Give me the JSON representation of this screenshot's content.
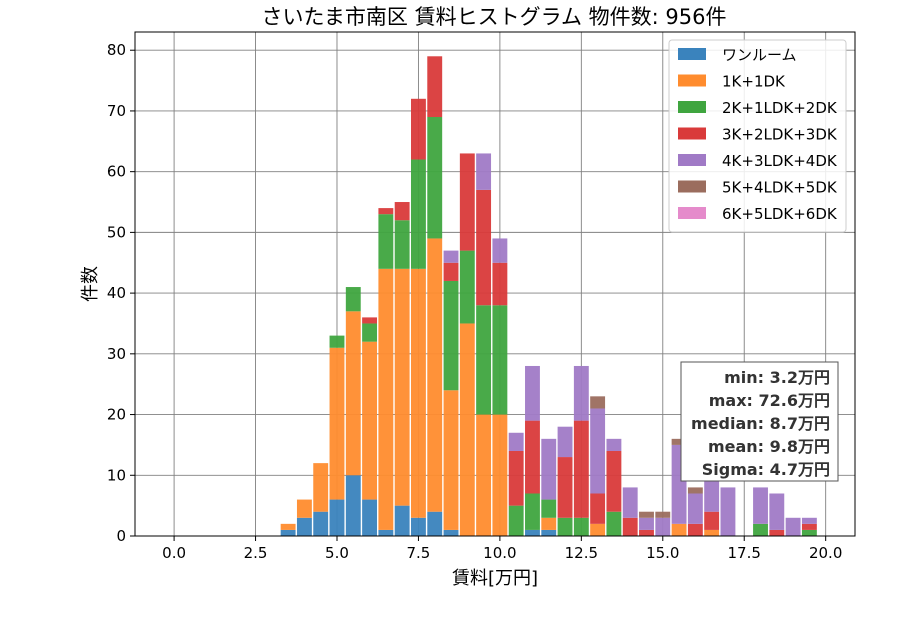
{
  "chart_data": {
    "type": "bar",
    "stacked": true,
    "title": "さいたま市南区 賃料ヒストグラム 物件数: 956件",
    "xlabel": "賃料[万円]",
    "ylabel": "件数",
    "xlim": [
      -1.2,
      20.9
    ],
    "ylim": [
      0,
      83
    ],
    "grid": true,
    "legend_position": "top-right",
    "bin_width": 0.5,
    "x_ticks": [
      "0.0",
      "2.5",
      "5.0",
      "7.5",
      "10.0",
      "12.5",
      "15.0",
      "17.5",
      "20.0"
    ],
    "y_ticks": [
      "0",
      "10",
      "20",
      "30",
      "40",
      "50",
      "60",
      "70",
      "80"
    ],
    "bin_starts": [
      3.0,
      3.5,
      4.0,
      4.5,
      5.0,
      5.5,
      6.0,
      6.5,
      7.0,
      7.5,
      8.0,
      8.5,
      9.0,
      9.5,
      10.0,
      10.5,
      11.0,
      11.5,
      12.0,
      12.5,
      13.0,
      13.5,
      14.0,
      14.5,
      15.0,
      15.5,
      16.0,
      16.5,
      17.0,
      17.5,
      18.0,
      18.5,
      19.0,
      19.5
    ],
    "series": [
      {
        "name": "ワンルーム",
        "color": "#3a83bd",
        "values": [
          0,
          1,
          3,
          4,
          6,
          10,
          6,
          1,
          5,
          3,
          4,
          1,
          0,
          0,
          0,
          0,
          1,
          1,
          0,
          0,
          0,
          0,
          0,
          0,
          0,
          0,
          0,
          0,
          0,
          0,
          0,
          0,
          0,
          0
        ]
      },
      {
        "name": "1K+1DK",
        "color": "#ff8c2e",
        "values": [
          0,
          1,
          3,
          8,
          25,
          27,
          26,
          43,
          39,
          41,
          45,
          23,
          35,
          20,
          20,
          0,
          0,
          2,
          0,
          0,
          2,
          0,
          0,
          0,
          0,
          2,
          0,
          1,
          0,
          0,
          0,
          0,
          0,
          0
        ]
      },
      {
        "name": "2K+1LDK+2DK",
        "color": "#3fa53f",
        "values": [
          0,
          0,
          0,
          0,
          2,
          4,
          3,
          9,
          8,
          18,
          20,
          18,
          12,
          18,
          18,
          5,
          6,
          3,
          3,
          3,
          0,
          4,
          0,
          0,
          0,
          0,
          0,
          0,
          0,
          0,
          2,
          0,
          0,
          1
        ]
      },
      {
        "name": "3K+2LDK+3DK",
        "color": "#d93a3a",
        "values": [
          0,
          0,
          0,
          0,
          0,
          0,
          1,
          1,
          3,
          10,
          10,
          3,
          16,
          19,
          7,
          9,
          12,
          0,
          10,
          16,
          5,
          10,
          3,
          1,
          0,
          0,
          2,
          3,
          0,
          0,
          0,
          1,
          0,
          1
        ]
      },
      {
        "name": "4K+3LDK+4DK",
        "color": "#a07ac6",
        "values": [
          0,
          0,
          0,
          0,
          0,
          0,
          0,
          0,
          0,
          0,
          0,
          2,
          0,
          6,
          4,
          3,
          9,
          10,
          5,
          9,
          14,
          2,
          5,
          2,
          3,
          13,
          5,
          5,
          8,
          0,
          6,
          6,
          3,
          1
        ]
      },
      {
        "name": "5K+4LDK+5DK",
        "color": "#9b6d5e",
        "values": [
          0,
          0,
          0,
          0,
          0,
          0,
          0,
          0,
          0,
          0,
          0,
          0,
          0,
          0,
          0,
          0,
          0,
          0,
          0,
          0,
          2,
          0,
          0,
          1,
          1,
          1,
          1,
          0,
          0,
          0,
          0,
          0,
          0,
          0
        ]
      },
      {
        "name": "6K+5LDK+6DK",
        "color": "#e58bcb",
        "values": [
          0,
          0,
          0,
          0,
          0,
          0,
          0,
          0,
          0,
          0,
          0,
          0,
          0,
          0,
          0,
          0,
          0,
          0,
          0,
          0,
          0,
          0,
          0,
          0,
          0,
          0,
          0,
          0,
          0,
          0,
          0,
          0,
          0,
          0
        ]
      }
    ],
    "stats": [
      "min: 3.2万円",
      "max: 72.6万円",
      "median: 8.7万円",
      "mean: 9.8万円",
      "Sigma: 4.7万円"
    ]
  }
}
